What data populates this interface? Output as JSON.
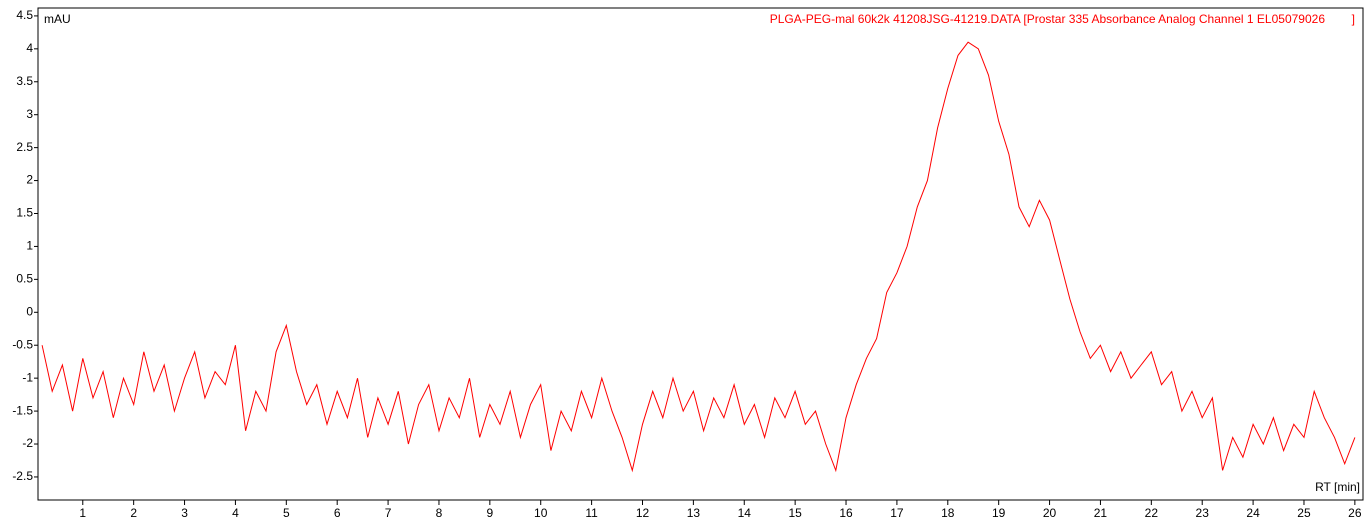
{
  "chart_data": {
    "type": "line",
    "y_label": "mAU",
    "x_label": "RT [min]",
    "xlim": [
      0.12,
      26.16
    ],
    "ylim": [
      -2.85,
      4.62
    ],
    "xticks": [
      1,
      2,
      3,
      4,
      5,
      6,
      7,
      8,
      9,
      10,
      11,
      12,
      13,
      14,
      15,
      16,
      17,
      18,
      19,
      20,
      21,
      22,
      23,
      24,
      25,
      26
    ],
    "yticks": [
      4.5,
      4,
      3.5,
      3,
      2.5,
      2,
      1.5,
      1,
      0.5,
      0,
      -0.5,
      -1,
      -1.5,
      -2,
      -2.5
    ],
    "x": [
      0.2,
      0.4,
      0.6,
      0.8,
      1.0,
      1.2,
      1.4,
      1.6,
      1.8,
      2.0,
      2.2,
      2.4,
      2.6,
      2.8,
      3.0,
      3.2,
      3.4,
      3.6,
      3.8,
      4.0,
      4.2,
      4.4,
      4.6,
      4.8,
      5.0,
      5.2,
      5.4,
      5.6,
      5.8,
      6.0,
      6.2,
      6.4,
      6.6,
      6.8,
      7.0,
      7.2,
      7.4,
      7.6,
      7.8,
      8.0,
      8.2,
      8.4,
      8.6,
      8.8,
      9.0,
      9.2,
      9.4,
      9.6,
      9.8,
      10.0,
      10.2,
      10.4,
      10.6,
      10.8,
      11.0,
      11.2,
      11.4,
      11.6,
      11.8,
      12.0,
      12.2,
      12.4,
      12.6,
      12.8,
      13.0,
      13.2,
      13.4,
      13.6,
      13.8,
      14.0,
      14.2,
      14.4,
      14.6,
      14.8,
      15.0,
      15.2,
      15.4,
      15.6,
      15.8,
      16.0,
      16.2,
      16.4,
      16.6,
      16.8,
      17.0,
      17.2,
      17.4,
      17.6,
      17.8,
      18.0,
      18.2,
      18.4,
      18.6,
      18.8,
      19.0,
      19.2,
      19.4,
      19.6,
      19.8,
      20.0,
      20.2,
      20.4,
      20.6,
      20.8,
      21.0,
      21.2,
      21.4,
      21.6,
      21.8,
      22.0,
      22.2,
      22.4,
      22.6,
      22.8,
      23.0,
      23.2,
      23.4,
      23.6,
      23.8,
      24.0,
      24.2,
      24.4,
      24.6,
      24.8,
      25.0,
      25.2,
      25.4,
      25.6,
      25.8,
      26.0
    ],
    "series": [
      {
        "name": "PLGA-PEG-mal 60k2k 41208JSG-41219.DATA [Prostar 335 Absorbance Analog Channel 1 EL05079026        ]",
        "color": "#ff0000",
        "values": [
          -0.5,
          -1.2,
          -0.8,
          -1.5,
          -0.7,
          -1.3,
          -0.9,
          -1.6,
          -1.0,
          -1.4,
          -0.6,
          -1.2,
          -0.8,
          -1.5,
          -1.0,
          -0.6,
          -1.3,
          -0.9,
          -1.1,
          -0.5,
          -1.8,
          -1.2,
          -1.5,
          -0.6,
          -0.2,
          -0.9,
          -1.4,
          -1.1,
          -1.7,
          -1.2,
          -1.6,
          -1.0,
          -1.9,
          -1.3,
          -1.7,
          -1.2,
          -2.0,
          -1.4,
          -1.1,
          -1.8,
          -1.3,
          -1.6,
          -1.0,
          -1.9,
          -1.4,
          -1.7,
          -1.2,
          -1.9,
          -1.4,
          -1.1,
          -2.1,
          -1.5,
          -1.8,
          -1.2,
          -1.6,
          -1.0,
          -1.5,
          -1.9,
          -2.4,
          -1.7,
          -1.2,
          -1.6,
          -1.0,
          -1.5,
          -1.2,
          -1.8,
          -1.3,
          -1.6,
          -1.1,
          -1.7,
          -1.4,
          -1.9,
          -1.3,
          -1.6,
          -1.2,
          -1.7,
          -1.5,
          -2.0,
          -2.4,
          -1.6,
          -1.1,
          -0.7,
          -0.4,
          0.3,
          0.6,
          1.0,
          1.6,
          2.0,
          2.8,
          3.4,
          3.9,
          4.1,
          4.0,
          3.6,
          2.9,
          2.4,
          1.6,
          1.3,
          1.7,
          1.4,
          0.8,
          0.2,
          -0.3,
          -0.7,
          -0.5,
          -0.9,
          -0.6,
          -1.0,
          -0.8,
          -0.6,
          -1.1,
          -0.9,
          -1.5,
          -1.2,
          -1.6,
          -1.3,
          -2.4,
          -1.9,
          -2.2,
          -1.7,
          -2.0,
          -1.6,
          -2.1,
          -1.7,
          -1.9,
          -1.2,
          -1.6,
          -1.9,
          -2.3,
          -1.9
        ]
      }
    ]
  }
}
